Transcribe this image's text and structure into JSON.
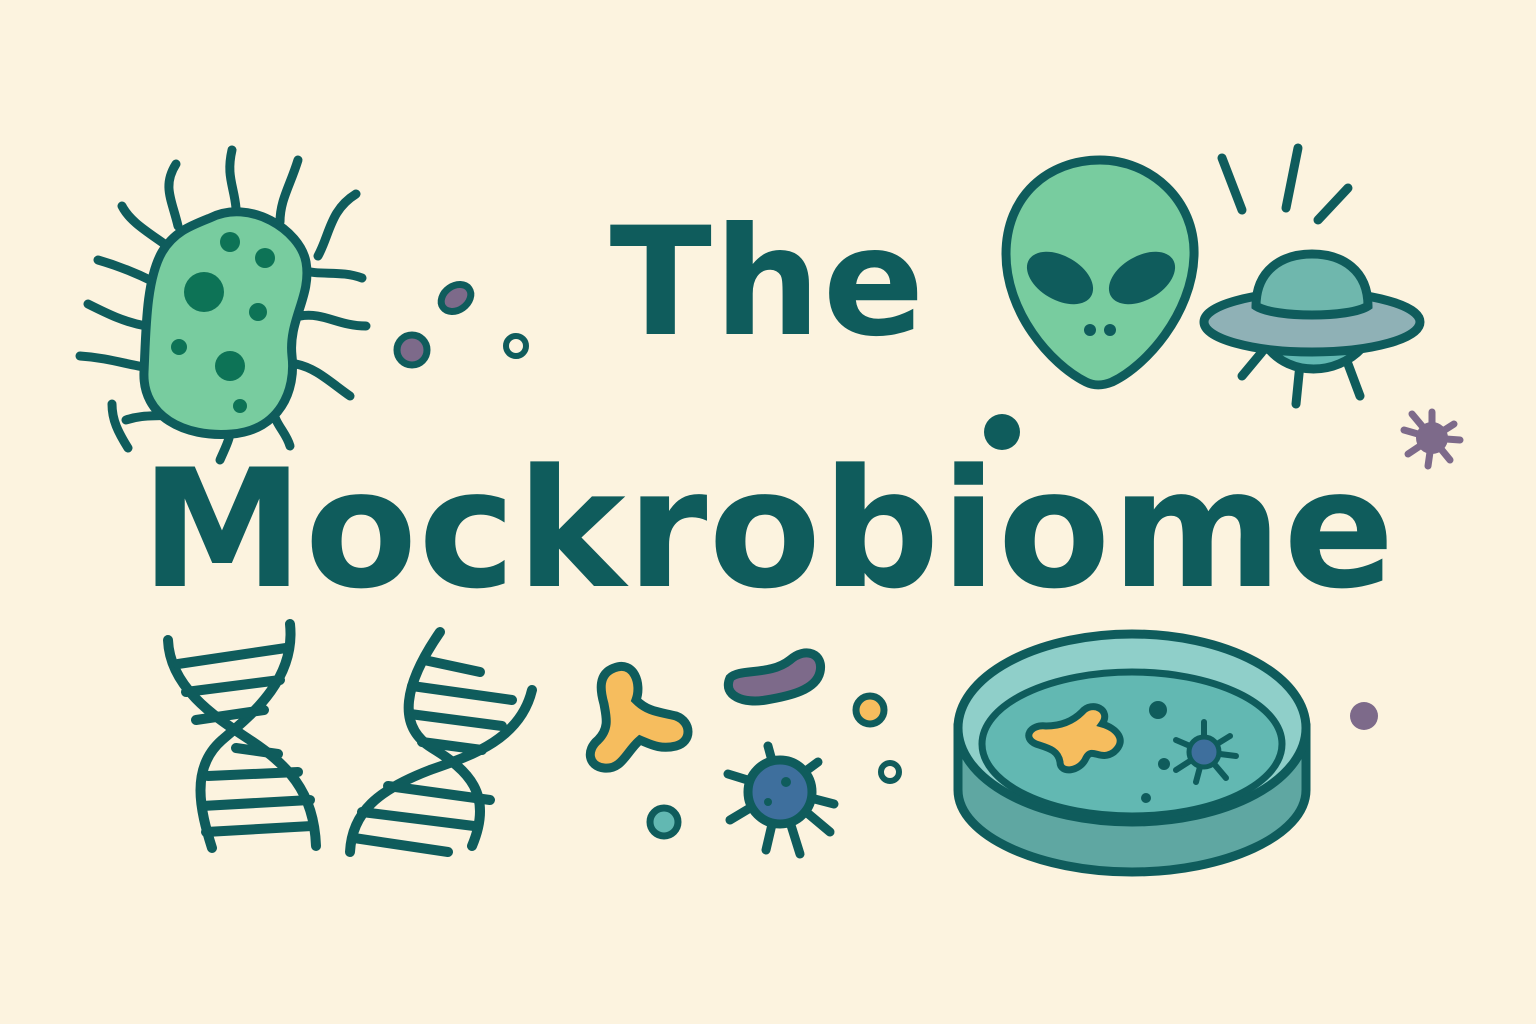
{
  "title": {
    "line1": "The",
    "line2": "Mockrobiome"
  },
  "icons": [
    "bacterium-icon",
    "alien-head-icon",
    "ufo-icon",
    "dna-helix-icon",
    "microbe-cluster-icon",
    "virus-icon",
    "petri-dish-icon"
  ],
  "colors": {
    "background": "#fcf3df",
    "ink": "#0f5c5c",
    "mint": "#78cc9f",
    "teal": "#62b8b2",
    "orange": "#f6bd5e",
    "purple": "#7d6a8a",
    "blue": "#3e6f9d"
  }
}
